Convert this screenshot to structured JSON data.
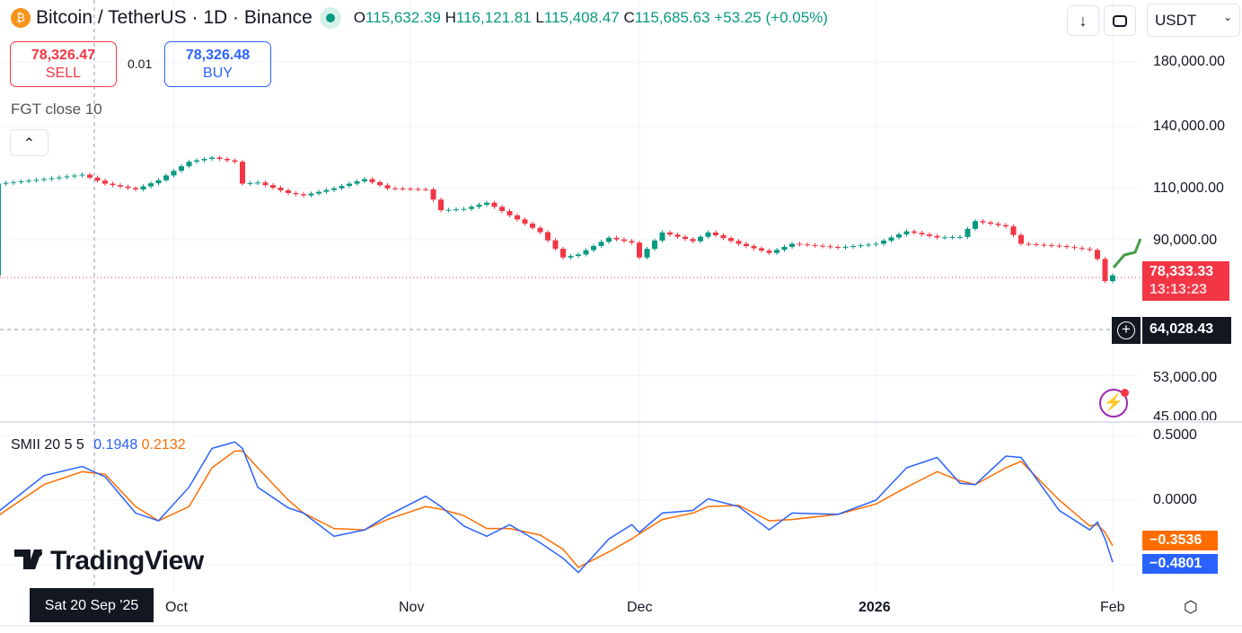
{
  "header": {
    "title": "Bitcoin / TetherUS · 1D · Binance",
    "ohlc": {
      "o_label": "O",
      "o": "115,632.39",
      "h_label": "H",
      "h": "116,121.81",
      "l_label": "L",
      "l": "115,408.47",
      "c_label": "C",
      "c": "115,685.63",
      "change": "+53.25 (+0.05%)"
    }
  },
  "toolbar": {
    "currency": "USDT",
    "download_icon": "arrow-down-icon",
    "fullscreen_icon": "fullscreen-icon"
  },
  "trade": {
    "sell_price": "78,326.47",
    "sell_label": "SELL",
    "spread": "0.01",
    "buy_price": "78,326.48",
    "buy_label": "BUY"
  },
  "indicator_fgt": "FGT close 10",
  "smii_legend": {
    "name": "SMII 20 5 5",
    "v1": "0.1948",
    "v2": "0.2132"
  },
  "price_axis": [
    "180,000.00",
    "140,000.00",
    "110,000.00",
    "90,000.00",
    "53,000.00",
    "45,000.00"
  ],
  "smii_axis": [
    "0.5000",
    "0.0000"
  ],
  "last_price": {
    "price": "78,333.33",
    "countdown": "13:13:23"
  },
  "crosshair": {
    "price": "64,028.43",
    "date": "Sat 20 Sep '25"
  },
  "smii_tags": {
    "orange": "−0.3536",
    "blue": "−0.4801"
  },
  "time_axis": [
    "Oct",
    "Nov",
    "Dec",
    "2026",
    "Feb"
  ],
  "logo": "TradingView",
  "colors": {
    "up": "#089981",
    "down": "#f23645",
    "smii_blue": "#2962ff",
    "smii_orange": "#ff6d00",
    "buy": "#2962ff",
    "sell": "#f23645"
  },
  "chart_data": [
    {
      "type": "candlestick",
      "scale": "log",
      "ylim": [
        45000,
        180000
      ],
      "x": [
        "2025-09-08",
        "2025-09-14",
        "2025-09-19",
        "2025-09-22",
        "2025-09-26",
        "2025-09-29",
        "2025-10-03",
        "2025-10-06",
        "2025-10-09",
        "2025-10-10",
        "2025-10-12",
        "2025-10-16",
        "2025-10-18",
        "2025-10-22",
        "2025-10-26",
        "2025-10-29",
        "2025-11-03",
        "2025-11-05",
        "2025-11-08",
        "2025-11-11",
        "2025-11-14",
        "2025-11-18",
        "2025-11-21",
        "2025-11-23",
        "2025-11-27",
        "2025-11-30",
        "2025-12-01",
        "2025-12-04",
        "2025-12-08",
        "2025-12-10",
        "2025-12-14",
        "2025-12-18",
        "2025-12-21",
        "2025-12-27",
        "2026-01-01",
        "2026-01-05",
        "2026-01-09",
        "2026-01-12",
        "2026-01-14",
        "2026-01-18",
        "2026-01-20",
        "2026-01-25",
        "2026-01-29",
        "2026-01-30",
        "2026-01-31",
        "2026-02-01"
      ],
      "close": [
        112000,
        114000,
        116000,
        112000,
        109500,
        113500,
        122000,
        124000,
        122000,
        112000,
        112500,
        108000,
        107000,
        110000,
        114000,
        110000,
        109500,
        101000,
        101500,
        104000,
        99000,
        92700,
        84000,
        85000,
        90700,
        89000,
        84000,
        92600,
        89500,
        92600,
        88600,
        85500,
        88600,
        87300,
        88600,
        93000,
        90800,
        91000,
        96800,
        94800,
        88600,
        87800,
        86500,
        83500,
        76600,
        78333
      ]
    },
    {
      "type": "line",
      "name": "SMII 20 5 5",
      "ylim": [
        -0.6,
        0.55
      ],
      "series": [
        {
          "values": [
            -0.09,
            0.19,
            0.26,
            0.18,
            -0.1,
            -0.16,
            0.1,
            0.4,
            0.45,
            0.4,
            0.1,
            -0.06,
            -0.1,
            -0.28,
            -0.23,
            -0.12,
            0.03,
            -0.05,
            -0.2,
            -0.28,
            -0.19,
            -0.33,
            -0.45,
            -0.56,
            -0.3,
            -0.19,
            -0.25,
            -0.1,
            -0.08,
            0.01,
            -0.05,
            -0.23,
            -0.1,
            -0.11,
            0.0,
            0.25,
            0.33,
            0.13,
            0.12,
            0.34,
            0.33,
            -0.08,
            -0.23,
            -0.17,
            -0.3,
            -0.4801
          ]
        },
        {
          "values": [
            -0.12,
            0.12,
            0.22,
            0.2,
            -0.05,
            -0.16,
            -0.05,
            0.25,
            0.38,
            0.38,
            0.25,
            0.0,
            -0.1,
            -0.22,
            -0.23,
            -0.15,
            -0.05,
            -0.07,
            -0.12,
            -0.22,
            -0.22,
            -0.27,
            -0.38,
            -0.52,
            -0.4,
            -0.3,
            -0.26,
            -0.15,
            -0.1,
            -0.05,
            -0.04,
            -0.16,
            -0.15,
            -0.11,
            -0.03,
            0.1,
            0.22,
            0.15,
            0.12,
            0.25,
            0.3,
            0.0,
            -0.2,
            -0.19,
            -0.25,
            -0.3536
          ]
        }
      ]
    }
  ]
}
